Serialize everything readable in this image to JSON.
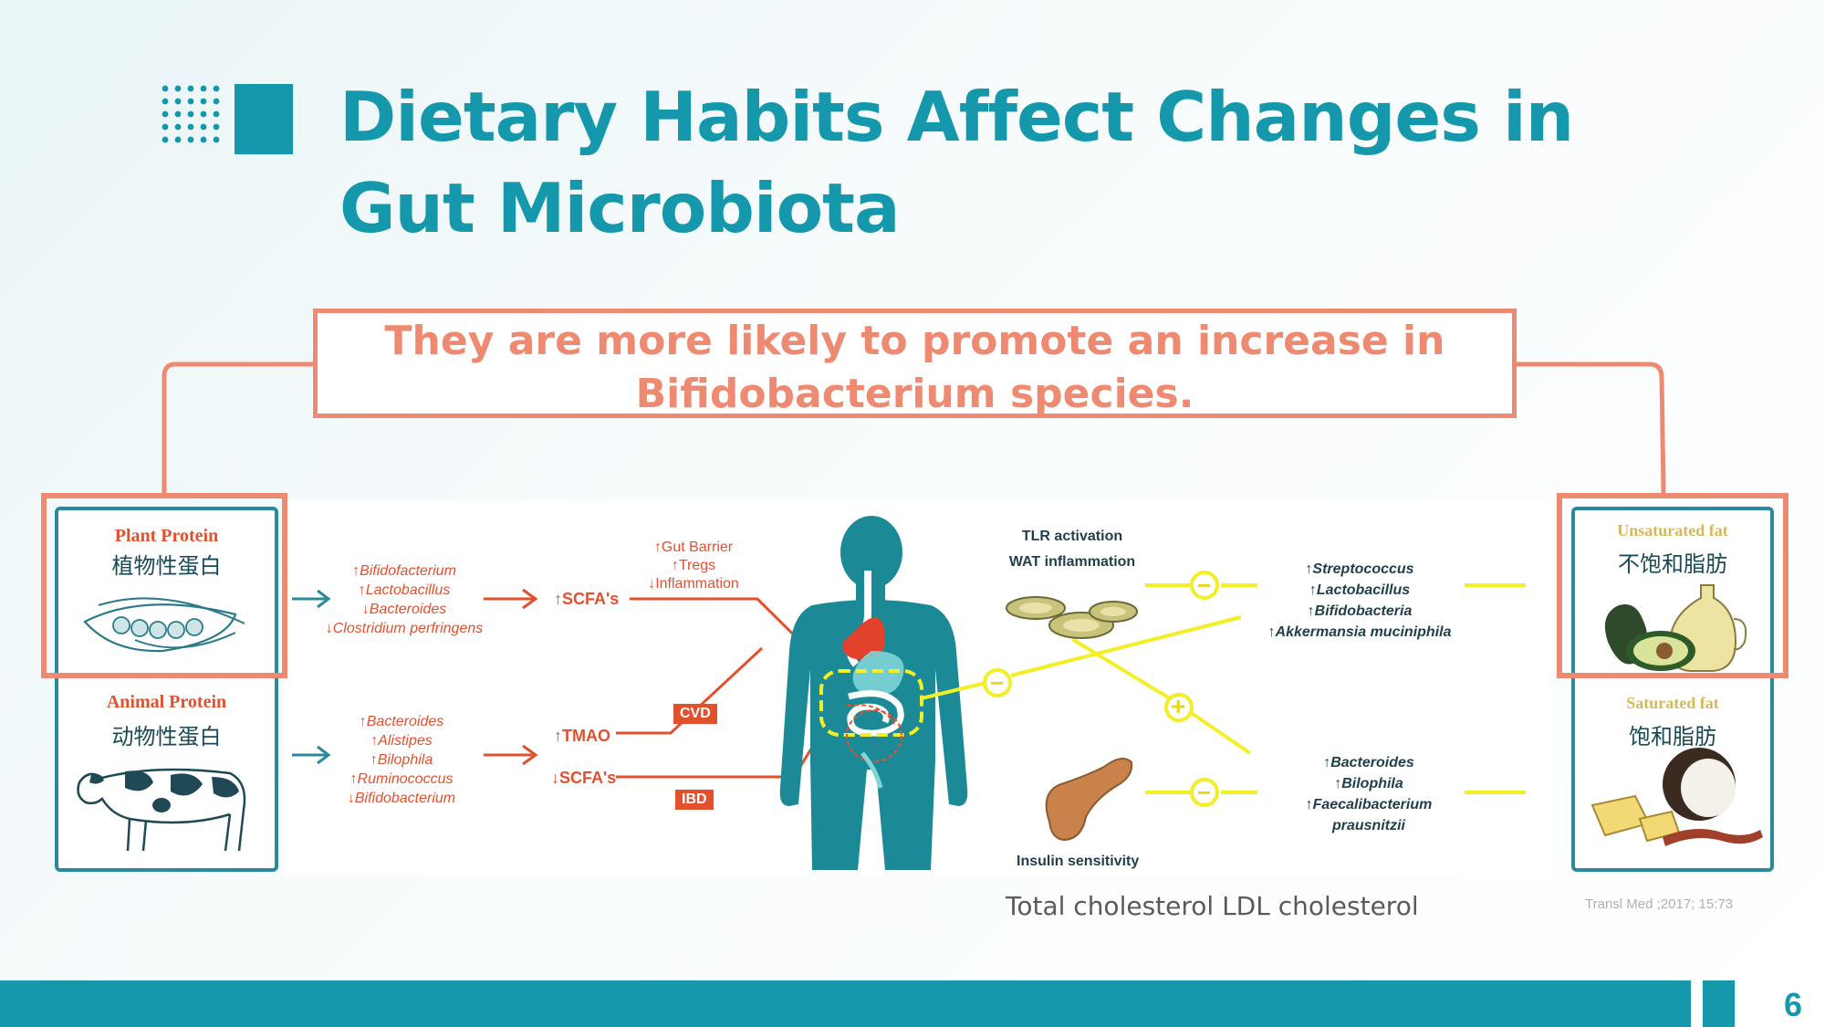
{
  "title": {
    "line1": "Dietary Habits Affect Changes in",
    "line2": "Gut Microbiota"
  },
  "callout": {
    "line1": "They are more likely to promote an increase in",
    "line2": "Bifidobacterium species."
  },
  "plant_protein": {
    "label_en": "Plant Protein",
    "label_zh": "植物性蛋白"
  },
  "animal_protein": {
    "label_en": "Animal Protein",
    "label_zh": "动物性蛋白"
  },
  "plant_effects": [
    "↑Bifidofacterium",
    "↑Lactobacillus",
    "↓Bacteroides",
    "↓Clostridium perfringens"
  ],
  "animal_effects": [
    "↑Bacteroides",
    "↑Alistipes",
    "↑Bilophila",
    "↑Ruminococcus",
    "↓Bifidobacterium"
  ],
  "scfa_up": "↑SCFA's",
  "barrier_effects": [
    "↑Gut Barrier",
    "↑Tregs",
    "↓Inflammation"
  ],
  "tmao": "↑TMAO",
  "scfa_down": "↓SCFA's",
  "badges": {
    "cvd": "CVD",
    "ibd": "IBD"
  },
  "tlr_labels": [
    "TLR activation",
    "WAT inflammation"
  ],
  "insulin_label": "Insulin sensitivity",
  "unsat_effects": [
    "↑Streptococcus",
    "↑Lactobacillus",
    "↑Bifidobacteria",
    "↑Akkermansia muciniphila"
  ],
  "sat_effects": [
    "↑Bacteroides",
    "↑Bilophila",
    "↑Faecalibacterium",
    "prausnitzii"
  ],
  "unsaturated_fat": {
    "label_en": "Unsaturated fat",
    "label_zh": "不饱和脂肪"
  },
  "saturated_fat": {
    "label_en": "Saturated fat",
    "label_zh": "饱和脂肪"
  },
  "signs": {
    "minus": "−",
    "plus": "+"
  },
  "cholesterol_note": "Total cholesterol LDL cholesterol",
  "citation": "Transl Med ;2017; 15:73",
  "page_number": "6",
  "colors": {
    "teal": "#1597ac",
    "coral": "#ee8a71",
    "red": "#e2502e",
    "yellow": "#f2ef27"
  }
}
